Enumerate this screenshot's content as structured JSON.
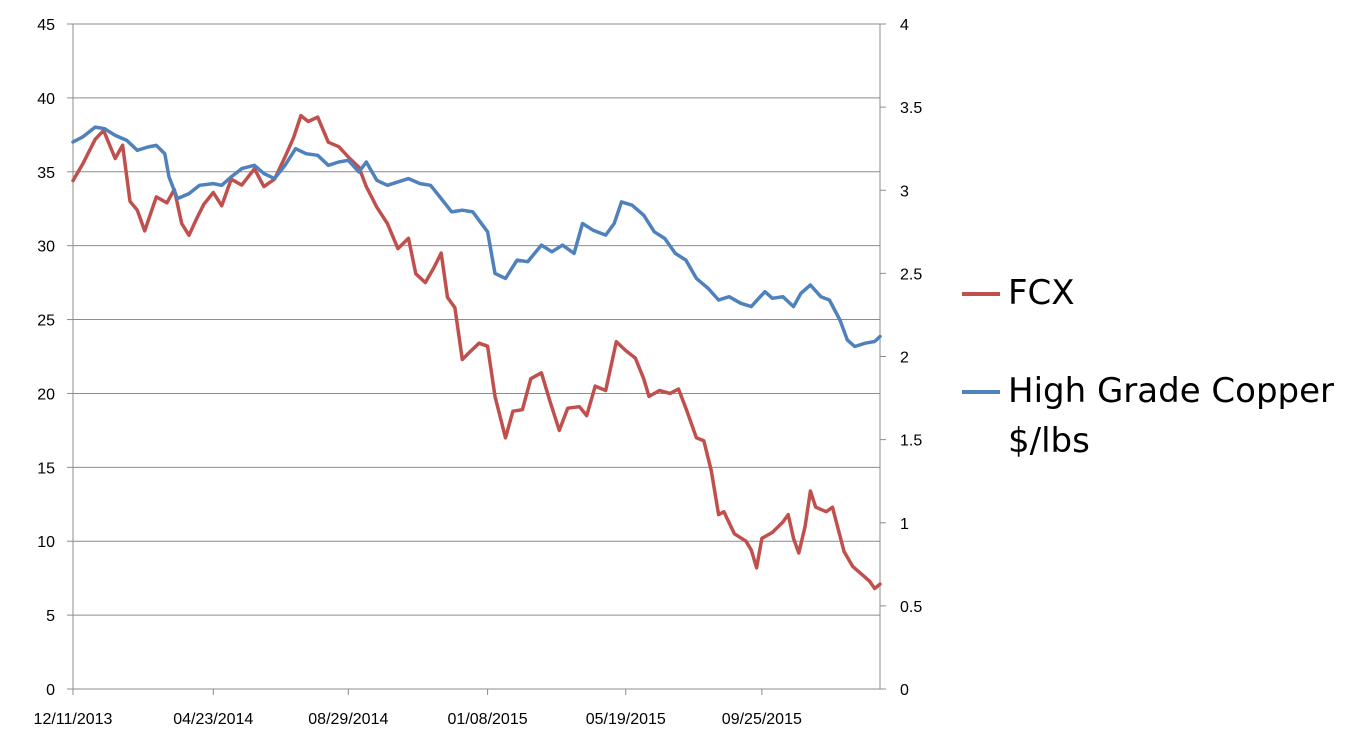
{
  "chart_data": {
    "type": "line",
    "title": "",
    "x_ticks": [
      "12/11/2013",
      "04/23/2014",
      "08/29/2014",
      "01/08/2015",
      "05/19/2015",
      "09/25/2015"
    ],
    "x_start": "12/11/2013",
    "x_end": "01/15/2016",
    "y_left": {
      "min": 0,
      "max": 45,
      "ticks": [
        0,
        5,
        10,
        15,
        20,
        25,
        30,
        35,
        40,
        45
      ]
    },
    "y_right": {
      "min": 0,
      "max": 4,
      "ticks": [
        "0",
        "0.5",
        "1",
        "1.5",
        "2",
        "2.5",
        "3",
        "3.5",
        "4"
      ]
    },
    "grid": true,
    "legend_position": "right",
    "series": [
      {
        "name": "FCX",
        "axis": "left",
        "color": "#C0504D",
        "points": [
          [
            "12/11/2013",
            34.4
          ],
          [
            "12/20/2013",
            35.5
          ],
          [
            "01/01/2014",
            37.2
          ],
          [
            "01/09/2014",
            37.8
          ],
          [
            "01/20/2014",
            35.9
          ],
          [
            "01/27/2014",
            36.8
          ],
          [
            "02/03/2014",
            33.0
          ],
          [
            "02/10/2014",
            32.4
          ],
          [
            "02/17/2014",
            31.0
          ],
          [
            "02/28/2014",
            33.3
          ],
          [
            "03/10/2014",
            32.9
          ],
          [
            "03/17/2014",
            33.8
          ],
          [
            "03/24/2014",
            31.5
          ],
          [
            "03/31/2014",
            30.7
          ],
          [
            "04/07/2014",
            31.8
          ],
          [
            "04/14/2014",
            32.8
          ],
          [
            "04/23/2014",
            33.6
          ],
          [
            "05/01/2014",
            32.7
          ],
          [
            "05/10/2014",
            34.5
          ],
          [
            "05/20/2014",
            34.1
          ],
          [
            "06/01/2014",
            35.2
          ],
          [
            "06/10/2014",
            34.0
          ],
          [
            "06/20/2014",
            34.5
          ],
          [
            "06/30/2014",
            36.0
          ],
          [
            "07/08/2014",
            37.3
          ],
          [
            "07/15/2014",
            38.8
          ],
          [
            "07/22/2014",
            38.4
          ],
          [
            "07/31/2014",
            38.7
          ],
          [
            "08/10/2014",
            37.0
          ],
          [
            "08/20/2014",
            36.7
          ],
          [
            "08/29/2014",
            36.0
          ],
          [
            "09/08/2014",
            35.3
          ],
          [
            "09/15/2014",
            34.0
          ],
          [
            "09/25/2014",
            32.6
          ],
          [
            "10/05/2014",
            31.5
          ],
          [
            "10/15/2014",
            29.8
          ],
          [
            "10/25/2014",
            30.5
          ],
          [
            "11/01/2014",
            28.1
          ],
          [
            "11/10/2014",
            27.5
          ],
          [
            "11/18/2014",
            28.5
          ],
          [
            "11/25/2014",
            29.5
          ],
          [
            "12/01/2014",
            26.5
          ],
          [
            "12/08/2014",
            25.8
          ],
          [
            "12/15/2014",
            22.3
          ],
          [
            "12/22/2014",
            22.8
          ],
          [
            "12/31/2014",
            23.4
          ],
          [
            "01/08/2015",
            23.2
          ],
          [
            "01/15/2015",
            19.8
          ],
          [
            "01/25/2015",
            17.0
          ],
          [
            "02/01/2015",
            18.8
          ],
          [
            "02/10/2015",
            18.9
          ],
          [
            "02/18/2015",
            21.0
          ],
          [
            "02/28/2015",
            21.4
          ],
          [
            "03/08/2015",
            19.5
          ],
          [
            "03/17/2015",
            17.5
          ],
          [
            "03/25/2015",
            19.0
          ],
          [
            "04/05/2015",
            19.1
          ],
          [
            "04/12/2015",
            18.5
          ],
          [
            "04/20/2015",
            20.5
          ],
          [
            "04/30/2015",
            20.2
          ],
          [
            "05/10/2015",
            23.5
          ],
          [
            "05/19/2015",
            22.9
          ],
          [
            "05/28/2015",
            22.4
          ],
          [
            "06/05/2015",
            21.0
          ],
          [
            "06/10/2015",
            19.8
          ],
          [
            "06/20/2015",
            20.2
          ],
          [
            "06/30/2015",
            20.0
          ],
          [
            "07/08/2015",
            20.3
          ],
          [
            "07/15/2015",
            19.0
          ],
          [
            "07/25/2015",
            17.0
          ],
          [
            "08/01/2015",
            16.8
          ],
          [
            "08/08/2015",
            14.8
          ],
          [
            "08/15/2015",
            11.8
          ],
          [
            "08/20/2015",
            12.0
          ],
          [
            "08/30/2015",
            10.5
          ],
          [
            "09/10/2015",
            10.0
          ],
          [
            "09/15/2015",
            9.4
          ],
          [
            "09/20/2015",
            8.2
          ],
          [
            "09/25/2015",
            10.2
          ],
          [
            "10/05/2015",
            10.6
          ],
          [
            "10/15/2015",
            11.3
          ],
          [
            "10/20/2015",
            11.8
          ],
          [
            "10/25/2015",
            10.2
          ],
          [
            "10/30/2015",
            9.2
          ],
          [
            "11/05/2015",
            11.0
          ],
          [
            "11/10/2015",
            13.4
          ],
          [
            "11/15/2015",
            12.3
          ],
          [
            "11/25/2015",
            12.0
          ],
          [
            "12/01/2015",
            12.3
          ],
          [
            "12/05/2015",
            11.2
          ],
          [
            "12/12/2015",
            9.3
          ],
          [
            "12/20/2015",
            8.3
          ],
          [
            "12/28/2015",
            7.8
          ],
          [
            "01/05/2016",
            7.3
          ],
          [
            "01/10/2016",
            6.8
          ],
          [
            "01/15/2016",
            7.1
          ]
        ]
      },
      {
        "name": "High Grade Copper $/lbs",
        "axis": "right",
        "color": "#4F81BD",
        "points": [
          [
            "12/11/2013",
            3.29
          ],
          [
            "12/20/2013",
            3.32
          ],
          [
            "01/01/2014",
            3.38
          ],
          [
            "01/10/2014",
            3.37
          ],
          [
            "01/20/2014",
            3.33
          ],
          [
            "01/31/2014",
            3.3
          ],
          [
            "02/10/2014",
            3.24
          ],
          [
            "02/20/2014",
            3.26
          ],
          [
            "02/28/2014",
            3.27
          ],
          [
            "03/08/2014",
            3.22
          ],
          [
            "03/12/2014",
            3.08
          ],
          [
            "03/20/2014",
            2.95
          ],
          [
            "03/31/2014",
            2.98
          ],
          [
            "04/10/2014",
            3.03
          ],
          [
            "04/23/2014",
            3.04
          ],
          [
            "05/01/2014",
            3.03
          ],
          [
            "05/10/2014",
            3.08
          ],
          [
            "05/20/2014",
            3.13
          ],
          [
            "06/01/2014",
            3.15
          ],
          [
            "06/10/2014",
            3.1
          ],
          [
            "06/20/2014",
            3.07
          ],
          [
            "06/30/2014",
            3.15
          ],
          [
            "07/10/2014",
            3.25
          ],
          [
            "07/20/2014",
            3.22
          ],
          [
            "07/31/2014",
            3.21
          ],
          [
            "08/10/2014",
            3.15
          ],
          [
            "08/20/2014",
            3.17
          ],
          [
            "08/29/2014",
            3.18
          ],
          [
            "09/08/2014",
            3.11
          ],
          [
            "09/15/2014",
            3.17
          ],
          [
            "09/25/2014",
            3.06
          ],
          [
            "10/05/2014",
            3.03
          ],
          [
            "10/15/2014",
            3.05
          ],
          [
            "10/25/2014",
            3.07
          ],
          [
            "11/05/2014",
            3.04
          ],
          [
            "11/15/2014",
            3.03
          ],
          [
            "11/25/2014",
            2.95
          ],
          [
            "12/05/2014",
            2.87
          ],
          [
            "12/15/2014",
            2.88
          ],
          [
            "12/25/2014",
            2.87
          ],
          [
            "01/08/2015",
            2.75
          ],
          [
            "01/15/2015",
            2.5
          ],
          [
            "01/25/2015",
            2.47
          ],
          [
            "02/05/2015",
            2.58
          ],
          [
            "02/15/2015",
            2.57
          ],
          [
            "02/28/2015",
            2.67
          ],
          [
            "03/10/2015",
            2.63
          ],
          [
            "03/20/2015",
            2.67
          ],
          [
            "03/31/2015",
            2.62
          ],
          [
            "04/08/2015",
            2.8
          ],
          [
            "04/18/2015",
            2.76
          ],
          [
            "04/30/2015",
            2.73
          ],
          [
            "05/08/2015",
            2.8
          ],
          [
            "05/15/2015",
            2.93
          ],
          [
            "05/25/2015",
            2.91
          ],
          [
            "06/05/2015",
            2.85
          ],
          [
            "06/15/2015",
            2.75
          ],
          [
            "06/25/2015",
            2.71
          ],
          [
            "07/05/2015",
            2.62
          ],
          [
            "07/15/2015",
            2.58
          ],
          [
            "07/25/2015",
            2.47
          ],
          [
            "08/05/2015",
            2.41
          ],
          [
            "08/15/2015",
            2.34
          ],
          [
            "08/25/2015",
            2.36
          ],
          [
            "09/05/2015",
            2.32
          ],
          [
            "09/15/2015",
            2.3
          ],
          [
            "09/22/2015",
            2.35
          ],
          [
            "09/28/2015",
            2.39
          ],
          [
            "10/05/2015",
            2.35
          ],
          [
            "10/15/2015",
            2.36
          ],
          [
            "10/25/2015",
            2.3
          ],
          [
            "11/01/2015",
            2.38
          ],
          [
            "11/10/2015",
            2.43
          ],
          [
            "11/20/2015",
            2.36
          ],
          [
            "11/28/2015",
            2.34
          ],
          [
            "12/08/2015",
            2.22
          ],
          [
            "12/15/2015",
            2.1
          ],
          [
            "12/22/2015",
            2.06
          ],
          [
            "01/01/2016",
            2.08
          ],
          [
            "01/10/2016",
            2.09
          ],
          [
            "01/15/2016",
            2.12
          ]
        ]
      }
    ]
  }
}
